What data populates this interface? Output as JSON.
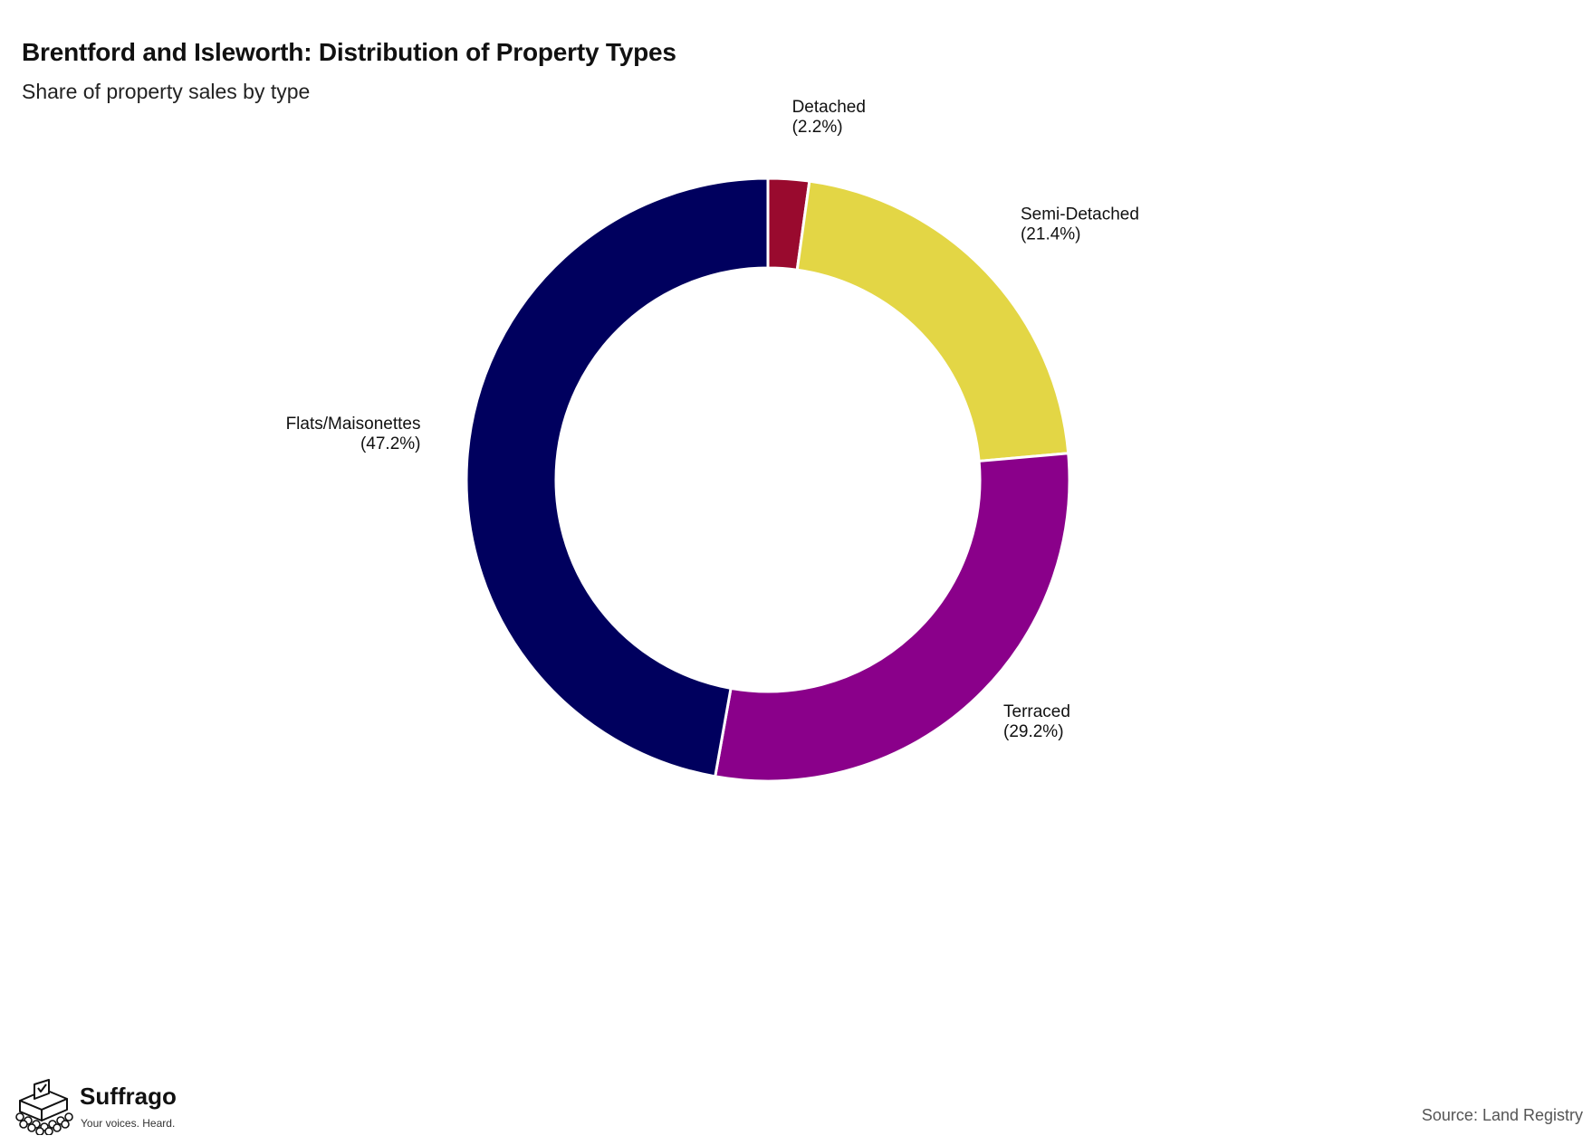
{
  "header": {
    "title": "Brentford and Isleworth: Distribution of Property Types",
    "subtitle": "Share of property sales by type"
  },
  "footer": {
    "brand_name": "Suffrago",
    "brand_tagline": "Your voices. Heard.",
    "source": "Source: Land Registry"
  },
  "chart_data": {
    "type": "pie",
    "variant": "donut",
    "title": "Brentford and Isleworth: Distribution of Property Types",
    "subtitle": "Share of property sales by type",
    "start_angle_degrees": 0,
    "direction": "clockwise",
    "legend": "none",
    "slices": [
      {
        "label": "Detached",
        "value": 2.2,
        "value_label": "(2.2%)",
        "color": "#990a2e"
      },
      {
        "label": "Semi-Detached",
        "value": 21.4,
        "value_label": "(21.4%)",
        "color": "#e3d645"
      },
      {
        "label": "Terraced",
        "value": 29.2,
        "value_label": "(29.2%)",
        "color": "#8a008a"
      },
      {
        "label": "Flats/Maisonettes",
        "value": 47.2,
        "value_label": "(47.2%)",
        "color": "#00005e"
      }
    ]
  }
}
